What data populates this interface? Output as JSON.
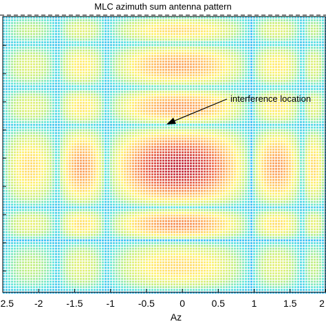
{
  "chart_data": {
    "type": "heatmap",
    "title": "MLC azimuth sum antenna pattern",
    "xlabel": "Az",
    "ylabel": "",
    "xlim": [
      -2.5,
      2.0
    ],
    "x_ticks": [
      -2.5,
      -2,
      -1.5,
      -1,
      -0.5,
      0,
      0.5,
      1,
      1.5,
      2
    ],
    "x_tick_labels": [
      "-2.5",
      "-2",
      "-1.5",
      "-1",
      "-0.5",
      "0",
      "0.5",
      "1",
      "1.5",
      "2"
    ],
    "y_ticks_count": 9,
    "rendering": "mesh",
    "colormap": [
      "#3fb7ff",
      "#6fe8e0",
      "#c8f08a",
      "#fff27a",
      "#ffc070",
      "#f07a5a",
      "#c63a4a"
    ],
    "grid": true,
    "annotations": [
      {
        "text": "interference location",
        "target": [
          -0.1,
          0.1
        ],
        "arrow": true
      }
    ]
  }
}
